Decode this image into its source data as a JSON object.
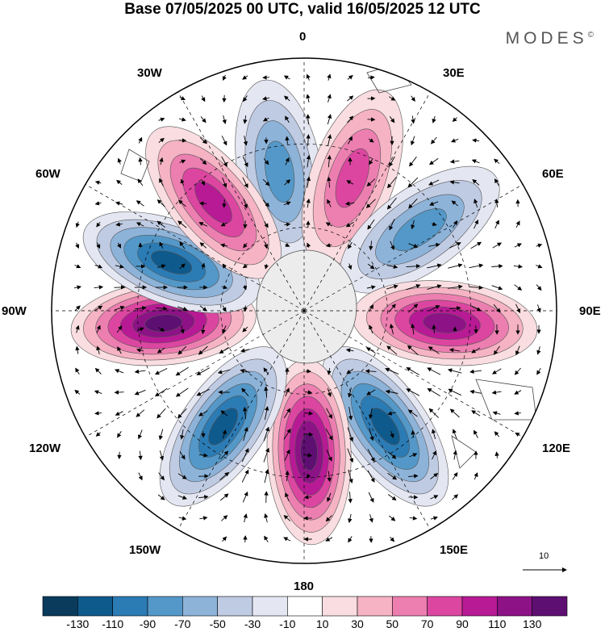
{
  "title": "Base 07/05/2025 00 UTC, valid 16/05/2025 12 UTC",
  "brand": "MODES",
  "brand_mark": "©",
  "longitude_labels": {
    "lon_0": "0",
    "lon_30e": "30E",
    "lon_60e": "60E",
    "lon_90e": "90E",
    "lon_120e": "120E",
    "lon_150e": "150E",
    "lon_180": "180",
    "lon_150w": "150W",
    "lon_120w": "120W",
    "lon_90w": "90W",
    "lon_60w": "60W",
    "lon_30w": "30W"
  },
  "reference_vector": "10",
  "colorbar": {
    "labels": [
      "-130",
      "-110",
      "-90",
      "-70",
      "-50",
      "-30",
      "-10",
      "10",
      "30",
      "50",
      "70",
      "90",
      "110",
      "130"
    ],
    "colors": [
      "#0a3b5c",
      "#0f5a8c",
      "#2b7bb5",
      "#5398c8",
      "#8db3d9",
      "#bfcbe3",
      "#e4e6f2",
      "#ffffff",
      "#f9dde0",
      "#f5b3c4",
      "#ec7fb0",
      "#dc46a0",
      "#b81a95",
      "#8c1286",
      "#5e0f72"
    ]
  },
  "anomalies": [
    {
      "lon_deg": 350,
      "sign": -1,
      "level": 3
    },
    {
      "lon_deg": 20,
      "sign": 1,
      "level": 3
    },
    {
      "lon_deg": 55,
      "sign": -1,
      "level": 3
    },
    {
      "lon_deg": 95,
      "sign": 1,
      "level": 5
    },
    {
      "lon_deg": 145,
      "sign": -1,
      "level": 5
    },
    {
      "lon_deg": 178,
      "sign": 1,
      "level": 6
    },
    {
      "lon_deg": 215,
      "sign": -1,
      "level": 5
    },
    {
      "lon_deg": 265,
      "sign": 1,
      "level": 6
    },
    {
      "lon_deg": 290,
      "sign": -1,
      "level": 5
    },
    {
      "lon_deg": 320,
      "sign": 1,
      "level": 4
    }
  ]
}
